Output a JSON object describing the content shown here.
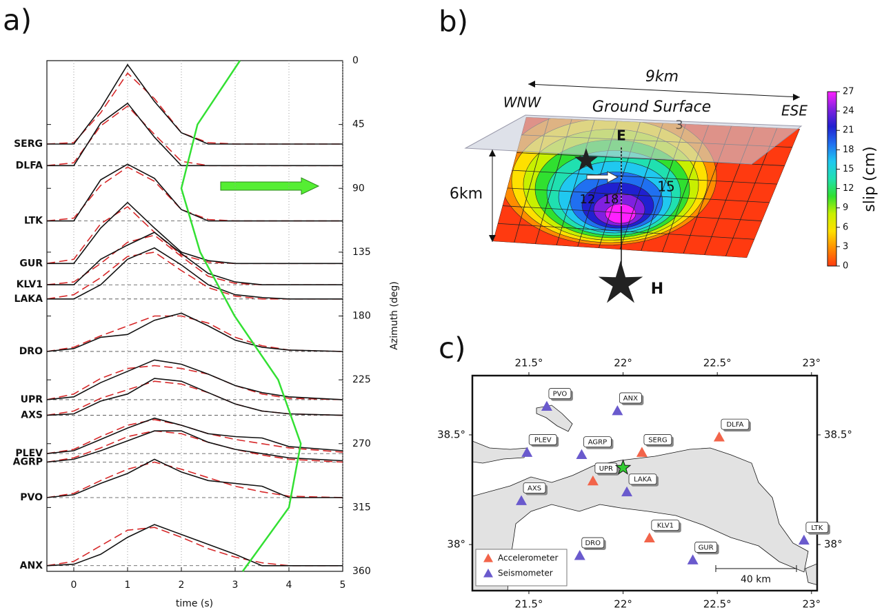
{
  "panel_a": {
    "label": "a)",
    "xlabel": "time (s)",
    "ylabel": "Azimuth (deg)",
    "xlim": [
      -0.5,
      5
    ],
    "xticks": [
      0,
      1,
      2,
      3,
      4,
      5
    ],
    "xgrid": true,
    "ylim": [
      0,
      360
    ],
    "yticks": [
      0,
      45,
      90,
      135,
      180,
      225,
      270,
      315,
      360
    ],
    "observed_color": "#111111",
    "synthetic_color": "#d62728",
    "times": [
      -0.5,
      0,
      0.5,
      1,
      1.5,
      2,
      2.5,
      3,
      3.5,
      4,
      5
    ],
    "stations": [
      {
        "name": "SERG",
        "azimuth": 58.8,
        "observed": [
          0,
          0,
          25,
          56,
          30,
          8,
          0,
          0,
          0,
          0,
          0
        ],
        "synthetic": [
          0,
          1,
          22,
          50,
          32,
          8,
          1,
          0,
          0,
          0,
          0
        ]
      },
      {
        "name": "DLFA",
        "azimuth": 74,
        "observed": [
          0,
          0,
          30,
          44,
          20,
          0,
          0,
          0,
          0,
          0,
          0
        ],
        "synthetic": [
          0,
          2,
          28,
          42,
          22,
          3,
          0,
          0,
          0,
          0,
          0
        ]
      },
      {
        "name": "LTK",
        "azimuth": 113,
        "observed": [
          0,
          0,
          29,
          40,
          30,
          8,
          0,
          0,
          0,
          0,
          0
        ],
        "synthetic": [
          0,
          2,
          25,
          38,
          28,
          8,
          1,
          0,
          0,
          0,
          0
        ]
      },
      {
        "name": "GUR",
        "azimuth": 143,
        "observed": [
          0,
          0,
          25,
          43,
          25,
          8,
          2,
          0,
          0,
          0,
          0
        ],
        "synthetic": [
          0,
          3,
          28,
          40,
          22,
          6,
          1,
          0,
          0,
          0,
          0
        ]
      },
      {
        "name": "KLV1",
        "azimuth": 158,
        "observed": [
          0,
          0,
          18,
          28,
          37,
          22,
          8,
          2,
          0,
          0,
          0
        ],
        "synthetic": [
          0,
          2,
          15,
          30,
          35,
          20,
          6,
          1,
          0,
          0,
          0
        ]
      },
      {
        "name": "LAKA",
        "azimuth": 168,
        "observed": [
          0,
          0,
          10,
          28,
          36,
          24,
          10,
          3,
          1,
          0,
          0
        ],
        "synthetic": [
          0,
          3,
          15,
          30,
          33,
          20,
          8,
          2,
          0,
          0,
          0
        ]
      },
      {
        "name": "DRO",
        "azimuth": 205,
        "observed": [
          0,
          2,
          10,
          12,
          22,
          27,
          18,
          8,
          3,
          1,
          0
        ],
        "synthetic": [
          0,
          3,
          11,
          18,
          25,
          25,
          20,
          10,
          4,
          1,
          0
        ]
      },
      {
        "name": "UPR",
        "azimuth": 239,
        "observed": [
          0,
          2,
          12,
          20,
          28,
          25,
          18,
          10,
          5,
          2,
          0
        ],
        "synthetic": [
          0,
          4,
          15,
          22,
          24,
          22,
          18,
          10,
          4,
          1,
          0
        ]
      },
      {
        "name": "AXS",
        "azimuth": 250,
        "observed": [
          0,
          1,
          10,
          15,
          26,
          24,
          16,
          8,
          3,
          1,
          0
        ],
        "synthetic": [
          0,
          3,
          12,
          18,
          24,
          22,
          16,
          8,
          3,
          1,
          0
        ]
      },
      {
        "name": "PLEV",
        "azimuth": 277,
        "observed": [
          0,
          2,
          10,
          18,
          25,
          20,
          14,
          12,
          11,
          5,
          2
        ],
        "synthetic": [
          0,
          3,
          12,
          20,
          24,
          20,
          14,
          10,
          7,
          4,
          1
        ]
      },
      {
        "name": "AGRP",
        "azimuth": 283,
        "observed": [
          0,
          2,
          8,
          15,
          22,
          22,
          14,
          9,
          6,
          3,
          1
        ],
        "synthetic": [
          0,
          3,
          10,
          18,
          22,
          20,
          14,
          9,
          5,
          2,
          0
        ]
      },
      {
        "name": "PVO",
        "azimuth": 308,
        "observed": [
          0,
          2,
          10,
          17,
          27,
          18,
          12,
          10,
          8,
          0,
          0
        ],
        "synthetic": [
          0,
          3,
          12,
          20,
          25,
          20,
          14,
          8,
          4,
          1,
          0
        ]
      },
      {
        "name": "ANX",
        "azimuth": 356,
        "observed": [
          0,
          1,
          8,
          20,
          29,
          22,
          15,
          8,
          0,
          0,
          0
        ],
        "synthetic": [
          0,
          3,
          14,
          25,
          27,
          20,
          12,
          6,
          2,
          0,
          0
        ]
      }
    ],
    "rupture_curve": {
      "color": "#33e033",
      "azimuth": [
        0,
        45,
        90,
        135,
        180,
        225,
        270,
        315,
        360
      ],
      "time": [
        3.09,
        2.3,
        2.0,
        2.35,
        2.99,
        3.8,
        4.22,
        4.0,
        3.14
      ]
    }
  },
  "panel_b": {
    "label": "b)",
    "length_label": "9km",
    "west_label": "WNW",
    "surface_label": "Ground Surface",
    "east_label": "ESE",
    "epicenter_label": "E",
    "width_label": "6km",
    "hypocenter_label": "H",
    "contour_labels": [
      "3",
      "15",
      "12",
      "18"
    ],
    "colorbar": {
      "label": "slip (cm)",
      "lim": [
        0,
        27
      ],
      "ticks": [
        0,
        3,
        6,
        9,
        12,
        15,
        18,
        21,
        24,
        27
      ],
      "colormap": [
        "#ff3a10",
        "#ff8c00",
        "#ffe000",
        "#c8f000",
        "#30e030",
        "#20e0b0",
        "#20c8f0",
        "#2070f0",
        "#2020d0",
        "#8020e0",
        "#ff20ff"
      ]
    }
  },
  "panel_c": {
    "label": "c)",
    "xlim": [
      21.2,
      23.03
    ],
    "ylim": [
      37.79,
      38.77
    ],
    "xticks": [
      {
        "value": 21.5,
        "label": "21.5°"
      },
      {
        "value": 22,
        "label": "22°"
      },
      {
        "value": 22.5,
        "label": "22.5°"
      },
      {
        "value": 23,
        "label": "23°"
      }
    ],
    "yticks": [
      {
        "value": 38,
        "label": "38°"
      },
      {
        "value": 38.5,
        "label": "38.5°"
      }
    ],
    "scale_label": "40 km",
    "epicenter": {
      "lon": 22.0,
      "lat": 38.35,
      "color": "#33cc33"
    },
    "station_groups": [
      {
        "label": "Accelerometer",
        "color": "#f2644a",
        "stations": [
          {
            "name": "DLFA",
            "lon": 22.51,
            "lat": 38.49
          },
          {
            "name": "SERG",
            "lon": 22.1,
            "lat": 38.42
          },
          {
            "name": "UPR",
            "lon": 21.84,
            "lat": 38.29
          },
          {
            "name": "KLV1",
            "lon": 22.14,
            "lat": 38.03
          }
        ]
      },
      {
        "label": "Seismometer",
        "color": "#6a5acd",
        "stations": [
          {
            "name": "PVO",
            "lon": 21.595,
            "lat": 38.63
          },
          {
            "name": "ANX",
            "lon": 21.97,
            "lat": 38.61
          },
          {
            "name": "PLEV",
            "lon": 21.49,
            "lat": 38.42
          },
          {
            "name": "AGRP",
            "lon": 21.78,
            "lat": 38.41
          },
          {
            "name": "LAKA",
            "lon": 22.02,
            "lat": 38.24
          },
          {
            "name": "AXS",
            "lon": 21.46,
            "lat": 38.2
          },
          {
            "name": "DRO",
            "lon": 21.77,
            "lat": 37.95
          },
          {
            "name": "GUR",
            "lon": 22.37,
            "lat": 37.93
          },
          {
            "name": "LTK",
            "lon": 22.96,
            "lat": 38.02
          }
        ]
      }
    ]
  }
}
